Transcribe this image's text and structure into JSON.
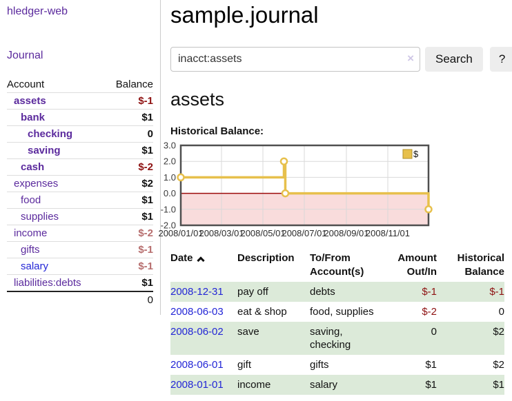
{
  "app_title": "hledger-web",
  "sidebar": {
    "nav_journal": "Journal",
    "accounts_table": {
      "account_header": "Account",
      "balance_header": "Balance",
      "rows": [
        {
          "label": "assets",
          "balance": "$-1",
          "depth": 1,
          "bold": true,
          "link": "purple"
        },
        {
          "label": "bank",
          "balance": "$1",
          "depth": 2,
          "bold": true,
          "link": "purple"
        },
        {
          "label": "checking",
          "balance": "0",
          "depth": 3,
          "bold": true,
          "link": "purple"
        },
        {
          "label": "saving",
          "balance": "$1",
          "depth": 3,
          "bold": true,
          "link": "purple"
        },
        {
          "label": "cash",
          "balance": "$-2",
          "depth": 2,
          "bold": true,
          "link": "purple"
        },
        {
          "label": "expenses",
          "balance": "$2",
          "depth": 1,
          "bold": false,
          "link": "purple"
        },
        {
          "label": "food",
          "balance": "$1",
          "depth": 2,
          "bold": false,
          "link": "purple"
        },
        {
          "label": "supplies",
          "balance": "$1",
          "depth": 2,
          "bold": false,
          "link": "purple"
        },
        {
          "label": "income",
          "balance": "$-2",
          "depth": 1,
          "bold": false,
          "link": "purple"
        },
        {
          "label": "gifts",
          "balance": "$-1",
          "depth": 2,
          "bold": false,
          "link": "purple"
        },
        {
          "label": "salary",
          "balance": "$-1",
          "depth": 2,
          "bold": false,
          "link": "blue"
        },
        {
          "label": "liabilities:debts",
          "balance": "$1",
          "depth": 1,
          "bold": false,
          "link": "purple"
        }
      ],
      "total": "0"
    }
  },
  "main": {
    "title": "sample.journal",
    "search": {
      "value": "inacct:assets",
      "clear_icon": "×",
      "search_button": "Search",
      "help_button": "?"
    },
    "account_heading": "assets",
    "chart_title": "Historical Balance:"
  },
  "chart_data": {
    "type": "line",
    "style": "step-after",
    "title": "Historical Balance",
    "legend": {
      "label": "$",
      "position": "top-right"
    },
    "x_range_days": [
      0,
      365
    ],
    "ylim": [
      -2,
      3
    ],
    "y_ticks": [
      {
        "label": "3.0",
        "value": 3
      },
      {
        "label": "2.0",
        "value": 2
      },
      {
        "label": "1.0",
        "value": 1
      },
      {
        "label": "0.0",
        "value": 0
      },
      {
        "label": "-1.0",
        "value": -1
      },
      {
        "label": "-2.0",
        "value": -2
      }
    ],
    "x_ticks": [
      {
        "label": "2008/01/01",
        "day": 0
      },
      {
        "label": "2008/03/01",
        "day": 60
      },
      {
        "label": "2008/05/01",
        "day": 121
      },
      {
        "label": "2008/07/01",
        "day": 182
      },
      {
        "label": "2008/09/01",
        "day": 244
      },
      {
        "label": "2008/11/01",
        "day": 305
      }
    ],
    "series": [
      {
        "name": "$",
        "color": "#e7c04c",
        "points": [
          {
            "date": "2008-01-01",
            "day": 0,
            "value": 1
          },
          {
            "date": "2008-06-01",
            "day": 152,
            "value": 2
          },
          {
            "date": "2008-06-03",
            "day": 154,
            "value": 0
          },
          {
            "date": "2008-12-31",
            "day": 365,
            "value": -1
          }
        ]
      }
    ],
    "negative_region_fill": "#f9dcdc",
    "zero_line_color": "#9c0b0b",
    "grid": true
  },
  "register": {
    "headers": {
      "date": "Date",
      "description": "Description",
      "account": "To/From Account(s)",
      "amount": "Amount Out/In",
      "balance": "Historical Balance"
    },
    "rows": [
      {
        "date": "2008-12-31",
        "description": "pay off",
        "account": "debts",
        "amount": "$-1",
        "balance": "$-1"
      },
      {
        "date": "2008-06-03",
        "description": "eat & shop",
        "account": "food, supplies",
        "amount": "$-2",
        "balance": "0"
      },
      {
        "date": "2008-06-02",
        "description": "save",
        "account": "saving, checking",
        "amount": "0",
        "balance": "$2"
      },
      {
        "date": "2008-06-01",
        "description": "gift",
        "account": "gifts",
        "amount": "$1",
        "balance": "$2"
      },
      {
        "date": "2008-01-01",
        "description": "income",
        "account": "salary",
        "amount": "$1",
        "balance": "$1"
      }
    ]
  },
  "colors": {
    "link_purple": "#5b2a9d",
    "link_blue": "#2326d6",
    "negative": "#8e1212",
    "negative_faded": "#b76e6e",
    "row_stripe_green": "#dcead9",
    "series_gold": "#e7c04c"
  }
}
